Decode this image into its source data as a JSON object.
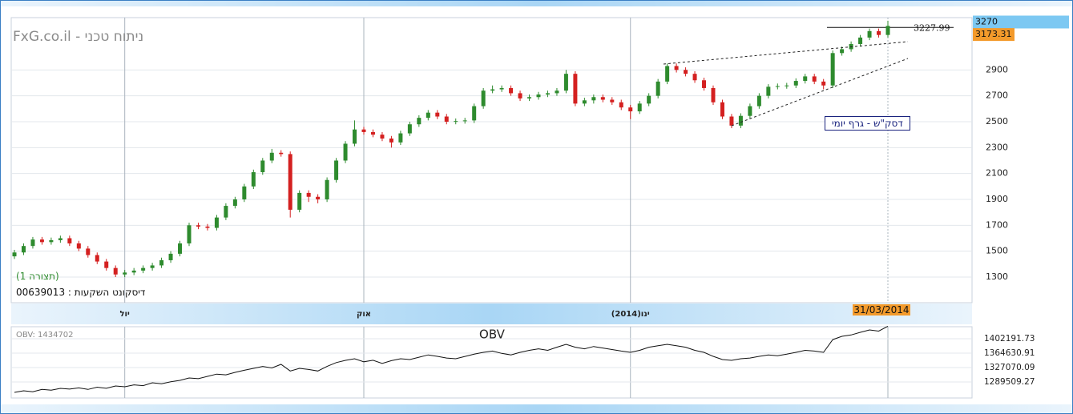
{
  "chart_data": {
    "type": "candlestick",
    "title": "FxG.co.il - ניתוח טכני",
    "pattern_label": "(תצורה 1)",
    "security_label": "דיסקונט השקעות : 00639013",
    "chart_label": "דסק\"ש - גרף יומי",
    "up_color": "#2e8b2e",
    "down_color": "#d42020",
    "ylim": [
      1102,
      3304
    ],
    "yticks": [
      1300,
      1500,
      1700,
      1900,
      2100,
      2300,
      2500,
      2700,
      2900
    ],
    "xlim": [
      -1.5,
      105.5
    ],
    "xticks": [
      {
        "value": 12,
        "label": "יול"
      },
      {
        "value": 38,
        "label": "אוק"
      },
      {
        "value": 67,
        "label": "ינו(2014)"
      }
    ],
    "last_date": {
      "value": 95,
      "label": "31/03/2014"
    },
    "high_marker": 3270,
    "last_marker": 3173.31,
    "resistance": 3227.99,
    "open": [
      1460,
      1490,
      1540,
      1590,
      1570,
      1585,
      1600,
      1560,
      1520,
      1470,
      1420,
      1370,
      1320,
      1335,
      1350,
      1370,
      1390,
      1430,
      1480,
      1560,
      1700,
      1690,
      1680,
      1760,
      1850,
      1900,
      2000,
      2110,
      2200,
      2260,
      2250,
      1820,
      1950,
      1920,
      1900,
      2050,
      2200,
      2330,
      2440,
      2420,
      2400,
      2370,
      2340,
      2410,
      2480,
      2530,
      2570,
      2540,
      2500,
      2505,
      2510,
      2620,
      2740,
      2750,
      2760,
      2720,
      2680,
      2690,
      2710,
      2720,
      2740,
      2870,
      2640,
      2665,
      2690,
      2670,
      2650,
      2610,
      2580,
      2640,
      2700,
      2810,
      2930,
      2900,
      2870,
      2820,
      2760,
      2650,
      2540,
      2470,
      2545,
      2620,
      2700,
      2770,
      2775,
      2780,
      2815,
      2850,
      2810,
      2780,
      3030,
      3060,
      3100,
      3150,
      3200,
      3170
    ],
    "high": [
      1510,
      1560,
      1610,
      1610,
      1605,
      1620,
      1620,
      1580,
      1540,
      1490,
      1440,
      1390,
      1355,
      1370,
      1390,
      1410,
      1450,
      1500,
      1580,
      1720,
      1720,
      1710,
      1780,
      1870,
      1920,
      2020,
      2130,
      2220,
      2290,
      2280,
      2270,
      1970,
      1970,
      1940,
      2070,
      2220,
      2350,
      2510,
      2460,
      2440,
      2420,
      2390,
      2430,
      2500,
      2550,
      2590,
      2590,
      2560,
      2525,
      2530,
      2640,
      2760,
      2780,
      2780,
      2780,
      2740,
      2710,
      2730,
      2740,
      2760,
      2900,
      2890,
      2685,
      2710,
      2710,
      2690,
      2670,
      2630,
      2660,
      2720,
      2830,
      2950,
      2950,
      2920,
      2890,
      2840,
      2780,
      2670,
      2560,
      2565,
      2640,
      2720,
      2790,
      2795,
      2800,
      2835,
      2870,
      2870,
      2830,
      3050,
      3080,
      3120,
      3170,
      3220,
      3220,
      3280
    ],
    "low": [
      1440,
      1470,
      1520,
      1550,
      1550,
      1565,
      1540,
      1500,
      1450,
      1400,
      1350,
      1300,
      1300,
      1315,
      1330,
      1350,
      1370,
      1410,
      1460,
      1540,
      1670,
      1660,
      1660,
      1740,
      1830,
      1880,
      1980,
      2090,
      2180,
      2230,
      1760,
      1800,
      1880,
      1870,
      1880,
      2030,
      2180,
      2310,
      2400,
      2380,
      2350,
      2300,
      2320,
      2390,
      2460,
      2510,
      2520,
      2480,
      2480,
      2485,
      2490,
      2600,
      2720,
      2730,
      2700,
      2660,
      2660,
      2670,
      2690,
      2700,
      2720,
      2620,
      2620,
      2640,
      2650,
      2630,
      2590,
      2520,
      2560,
      2620,
      2680,
      2790,
      2880,
      2850,
      2800,
      2740,
      2630,
      2520,
      2450,
      2450,
      2525,
      2600,
      2680,
      2750,
      2755,
      2760,
      2795,
      2790,
      2750,
      2760,
      3010,
      3040,
      3080,
      3130,
      3150,
      3150
    ],
    "close": [
      1490,
      1540,
      1590,
      1570,
      1585,
      1600,
      1560,
      1520,
      1470,
      1420,
      1370,
      1320,
      1335,
      1350,
      1370,
      1390,
      1430,
      1480,
      1560,
      1700,
      1690,
      1680,
      1760,
      1850,
      1900,
      2000,
      2110,
      2200,
      2260,
      2250,
      1820,
      1950,
      1920,
      1900,
      2050,
      2200,
      2330,
      2440,
      2420,
      2400,
      2370,
      2340,
      2410,
      2480,
      2530,
      2570,
      2540,
      2500,
      2505,
      2510,
      2620,
      2740,
      2750,
      2760,
      2720,
      2680,
      2690,
      2710,
      2720,
      2740,
      2870,
      2640,
      2665,
      2690,
      2670,
      2650,
      2610,
      2580,
      2640,
      2700,
      2810,
      2930,
      2900,
      2870,
      2820,
      2760,
      2650,
      2540,
      2470,
      2545,
      2620,
      2700,
      2770,
      2775,
      2780,
      2815,
      2850,
      2810,
      2780,
      3030,
      3060,
      3100,
      3150,
      3200,
      3170,
      3240
    ],
    "obv": {
      "title": "OBV",
      "label": "OBV: 1434702",
      "color": "#111111",
      "ylim": [
        1247775,
        1433492
      ],
      "yticks": [
        1402191.73,
        1364630.91,
        1327070.09,
        1289509.27
      ],
      "values": [
        1262384,
        1266556,
        1264000,
        1270000,
        1268000,
        1272817,
        1271000,
        1274000,
        1270000,
        1276000,
        1273000,
        1279075,
        1277000,
        1282000,
        1280000,
        1287424,
        1285000,
        1290000,
        1293643,
        1300000,
        1298000,
        1304117,
        1310000,
        1308000,
        1314550,
        1320000,
        1324983,
        1330000,
        1326000,
        1335417,
        1318000,
        1325000,
        1322000,
        1318000,
        1330000,
        1340000,
        1345851,
        1350024,
        1342000,
        1346000,
        1338000,
        1345000,
        1350024,
        1348000,
        1354000,
        1360000,
        1356284,
        1352000,
        1350024,
        1356000,
        1362000,
        1366718,
        1370000,
        1364000,
        1360000,
        1366718,
        1372000,
        1376000,
        1372000,
        1380000,
        1387585,
        1380000,
        1376000,
        1382000,
        1378000,
        1374000,
        1370000,
        1366718,
        1372000,
        1380000,
        1384000,
        1387585,
        1384000,
        1380000,
        1372000,
        1366718,
        1356284,
        1348000,
        1345851,
        1350024,
        1352000,
        1356284,
        1360000,
        1358000,
        1362000,
        1366718,
        1372000,
        1370000,
        1366718,
        1400000,
        1408452,
        1412000,
        1418885,
        1425145,
        1422000,
        1434702
      ]
    }
  }
}
